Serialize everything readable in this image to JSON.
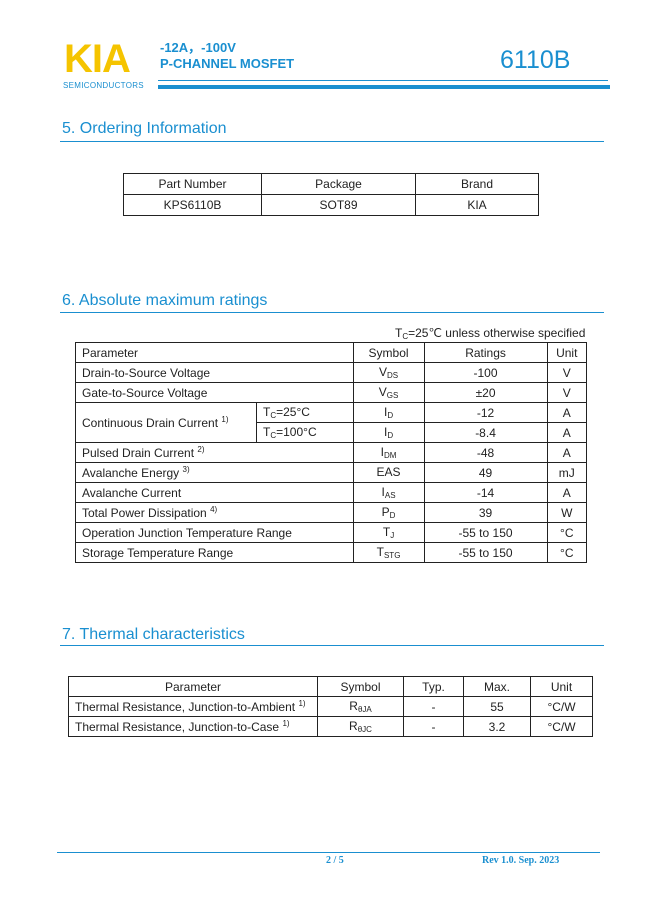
{
  "header": {
    "logo": "KIA",
    "logo_sub": "SEMICONDUCTORS",
    "spec": "-12A，-100V",
    "type": "P-CHANNEL MOSFET",
    "part": "6110B"
  },
  "colors": {
    "accent": "#1a8fd0",
    "logo": "#f5c400"
  },
  "ordering": {
    "title": "5. Ordering Information",
    "headers": [
      "Part Number",
      "Package",
      "Brand"
    ],
    "row": [
      "KPS6110B",
      "SOT89",
      "KIA"
    ]
  },
  "absmax": {
    "title": "6. Absolute maximum ratings",
    "note_pre": "T",
    "note_sub": "C",
    "note_post": "=25℃ unless otherwise specified",
    "headers": [
      "Parameter",
      "Symbol",
      "Ratings",
      "Unit"
    ],
    "rows": [
      {
        "param": "Drain-to-Source Voltage",
        "sym": "V",
        "sub": "DS",
        "val": "-100",
        "unit": "V"
      },
      {
        "param": "Gate-to-Source Voltage",
        "sym": "V",
        "sub": "GS",
        "val": "±20",
        "unit": "V"
      },
      {
        "param": "Continuous Drain Current",
        "note": "1)",
        "cond": "=25°C",
        "sym": "I",
        "sub": "D",
        "val": "-12",
        "unit": "A"
      },
      {
        "cond": "=100°C",
        "sym": "I",
        "sub": "D",
        "val": "-8.4",
        "unit": "A"
      },
      {
        "param": "Pulsed Drain Current",
        "note": "2)",
        "sym": "I",
        "sub": "DM",
        "val": "-48",
        "unit": "A"
      },
      {
        "param": "Avalanche Energy",
        "note": "3)",
        "sym": "EAS",
        "sub": "",
        "val": "49",
        "unit": "mJ"
      },
      {
        "param": "Avalanche Current",
        "sym": "I",
        "sub": "AS",
        "val": "-14",
        "unit": "A"
      },
      {
        "param": "Total Power Dissipation",
        "note": "4)",
        "sym": "P",
        "sub": "D",
        "val": "39",
        "unit": "W"
      },
      {
        "param": "Operation Junction Temperature Range",
        "sym": "T",
        "sub": "J",
        "val": "-55 to 150",
        "unit": "°C"
      },
      {
        "param": "Storage Temperature Range",
        "sym": "T",
        "sub": "STG",
        "val": "-55 to 150",
        "unit": "°C"
      }
    ],
    "cond_pre": "T",
    "cond_sub": "C"
  },
  "thermal": {
    "title": "7. Thermal characteristics",
    "headers": [
      "Parameter",
      "Symbol",
      "Typ.",
      "Max.",
      "Unit"
    ],
    "rows": [
      {
        "param": "Thermal Resistance, Junction-to-Ambient",
        "note": "1)",
        "sym": "R",
        "sub": "θJA",
        "typ": "-",
        "max": "55",
        "unit": "°C/W"
      },
      {
        "param": "Thermal Resistance, Junction-to-Case",
        "note": "1)",
        "sym": "R",
        "sub": "θJC",
        "typ": "-",
        "max": "3.2",
        "unit": "°C/W"
      }
    ]
  },
  "footer": {
    "page": "2 / 5",
    "rev": "Rev 1.0. Sep. 2023"
  }
}
